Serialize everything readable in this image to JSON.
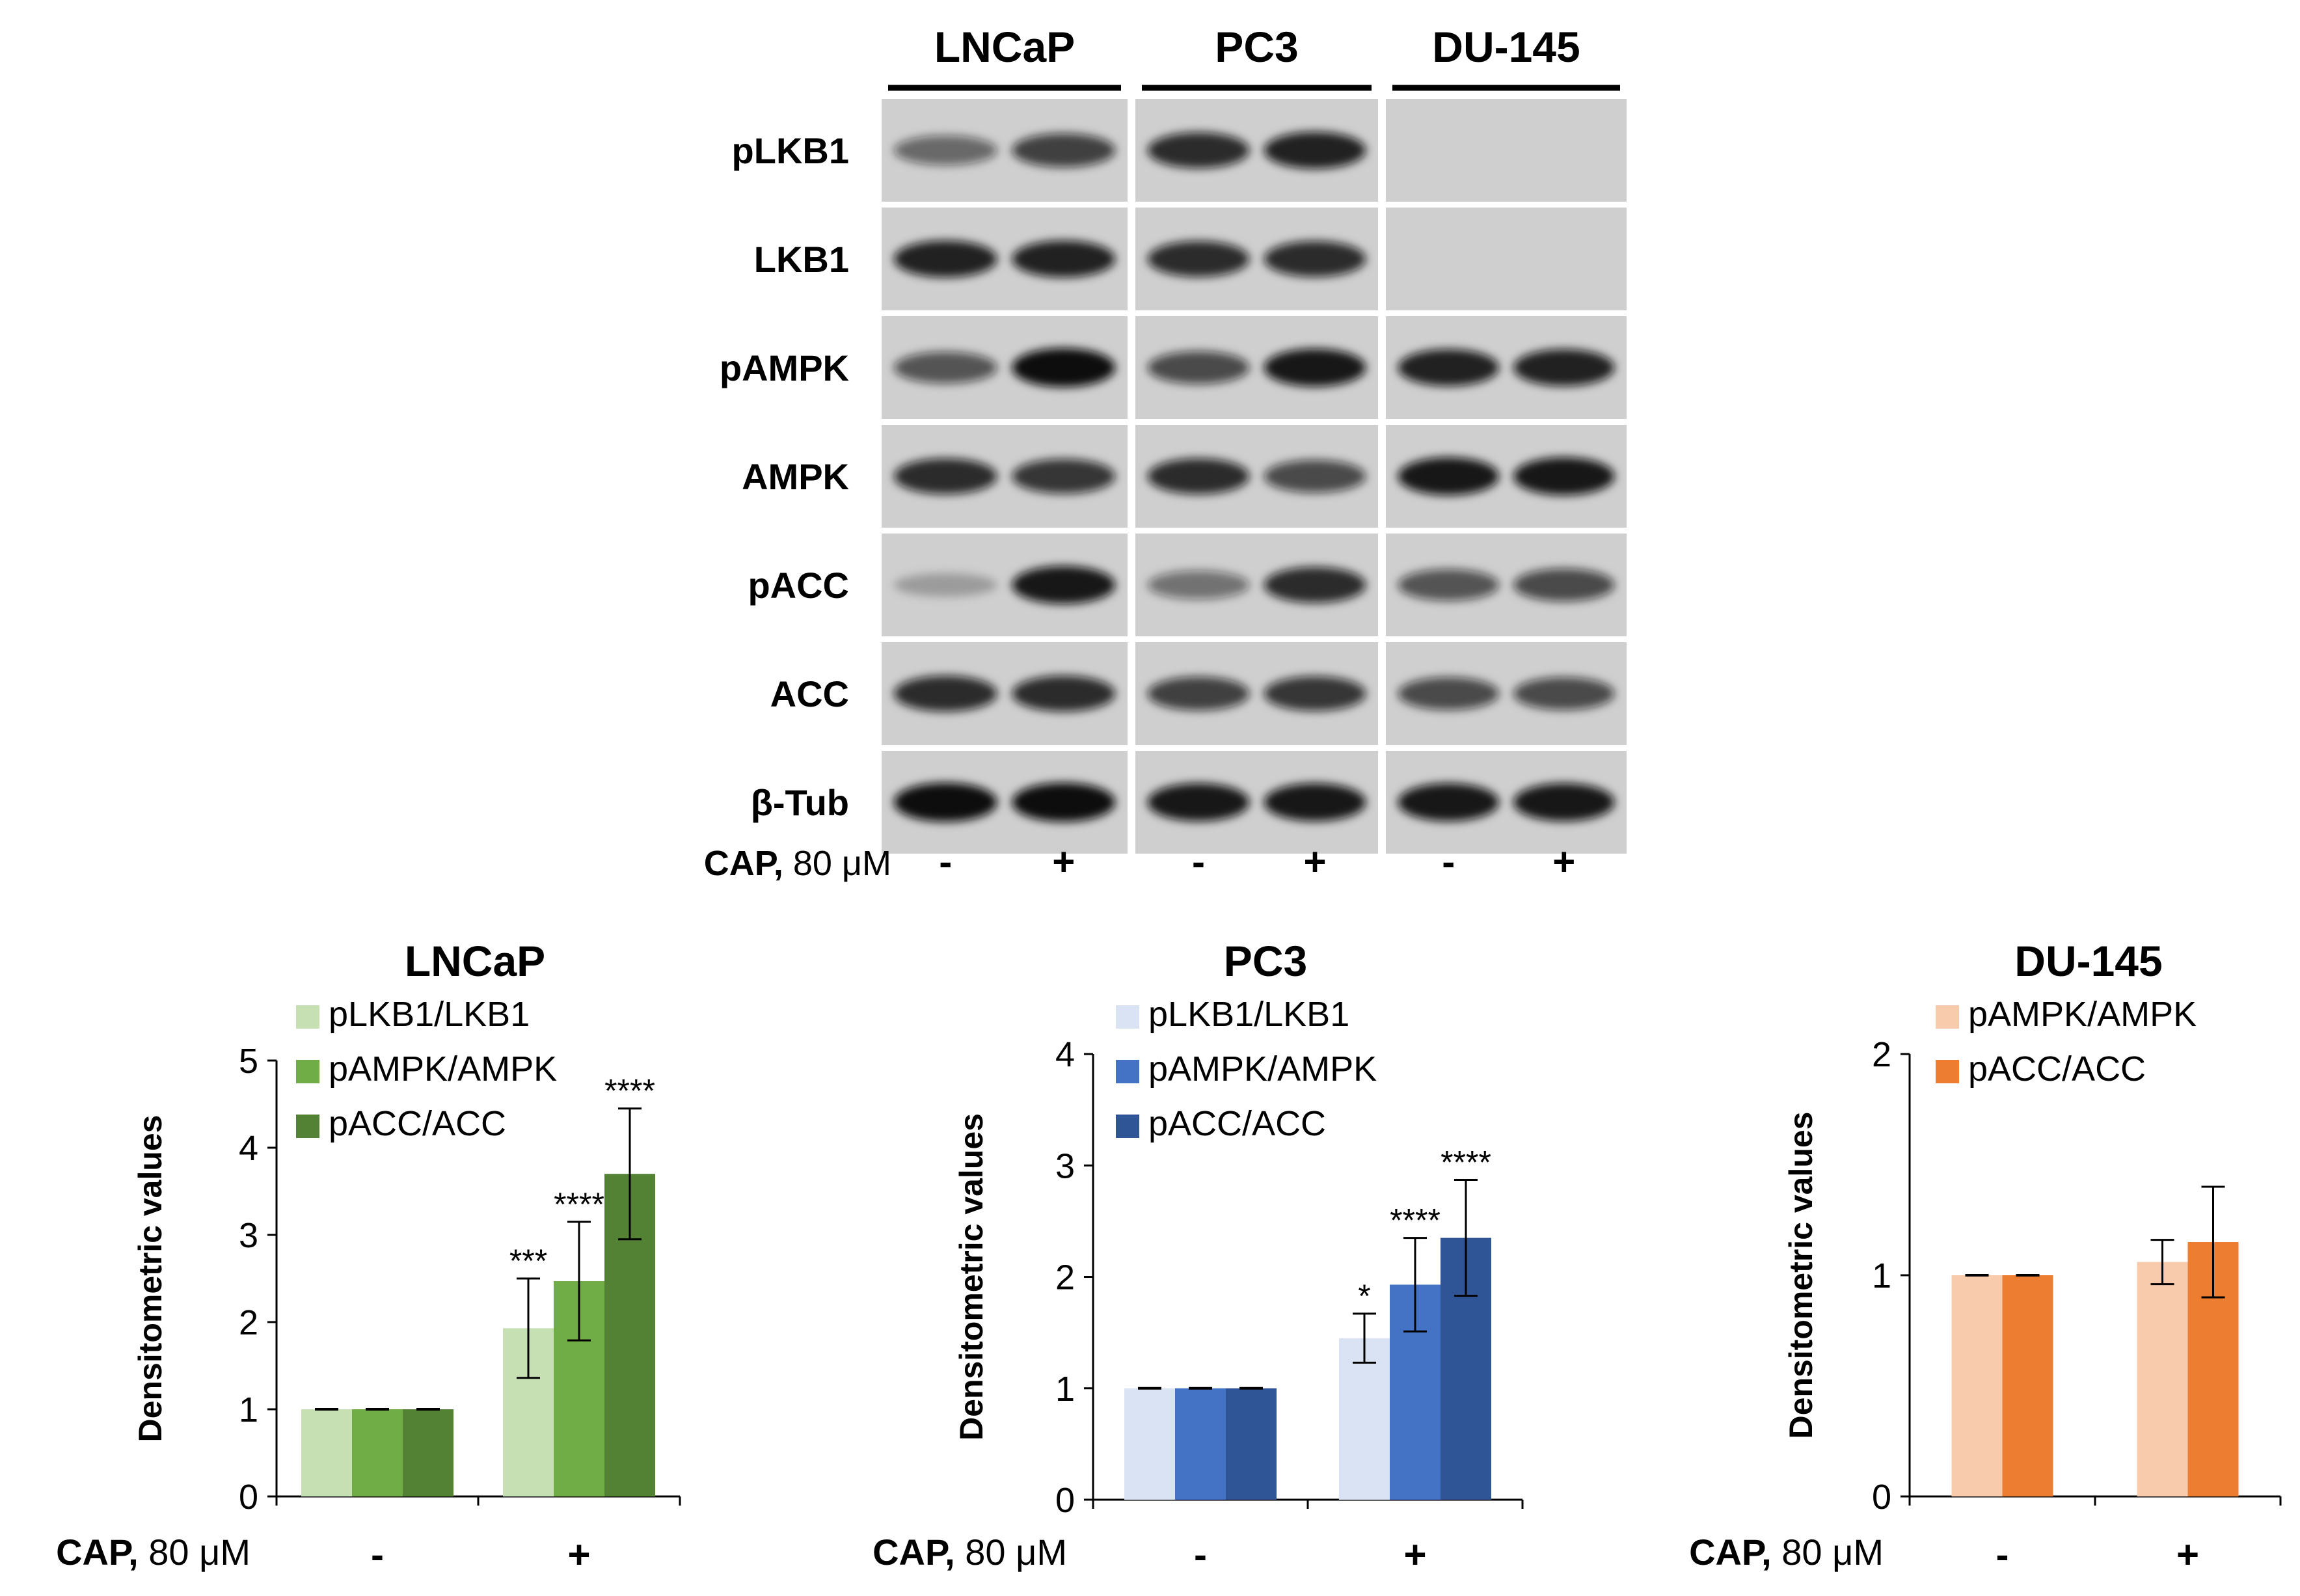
{
  "blot": {
    "cell_lines": [
      "LNCaP",
      "PC3",
      "DU-145"
    ],
    "rows": [
      "pLKB1",
      "LKB1",
      "pAMPK",
      "AMPK",
      "pACC",
      "ACC",
      "β-Tub"
    ],
    "treatment_label_bold": "CAP,",
    "treatment_label_rest": " 80 μM",
    "lane_signs": [
      "-",
      "+",
      "-",
      "+",
      "-",
      "+"
    ],
    "band_intensity": [
      [
        0.55,
        0.75,
        0.85,
        0.9,
        0,
        0
      ],
      [
        0.9,
        0.9,
        0.85,
        0.85,
        0,
        0
      ],
      [
        0.65,
        1.0,
        0.7,
        0.95,
        0.9,
        0.9
      ],
      [
        0.85,
        0.8,
        0.85,
        0.7,
        0.95,
        0.95
      ],
      [
        0.25,
        0.95,
        0.5,
        0.85,
        0.65,
        0.7
      ],
      [
        0.85,
        0.85,
        0.75,
        0.8,
        0.7,
        0.7
      ],
      [
        1.0,
        1.0,
        0.95,
        0.95,
        0.95,
        0.95
      ]
    ]
  },
  "chart_data": [
    {
      "type": "bar",
      "title": "LNCaP",
      "ylabel": "Densitometric values",
      "xlabel_bold": "CAP,",
      "xlabel_rest": " 80 μM",
      "categories": [
        "-",
        "+"
      ],
      "ylim": [
        0,
        5
      ],
      "yticks": [
        "0",
        "1",
        "2",
        "3",
        "4",
        "5"
      ],
      "legend_position": "top-left",
      "series": [
        {
          "name": "pLKB1/LKB1",
          "color": "#c6e0b4",
          "values": [
            1,
            1.93
          ],
          "errors": [
            0,
            0.57
          ],
          "significance": [
            "",
            "***"
          ]
        },
        {
          "name": "pAMPK/AMPK",
          "color": "#70ad47",
          "values": [
            1,
            2.47
          ],
          "errors": [
            0,
            0.68
          ],
          "significance": [
            "",
            "****"
          ]
        },
        {
          "name": "pACC/ACC",
          "color": "#548235",
          "values": [
            1,
            3.7
          ],
          "errors": [
            0,
            0.75
          ],
          "significance": [
            "",
            "****"
          ]
        }
      ]
    },
    {
      "type": "bar",
      "title": "PC3",
      "ylabel": "Densitometric values",
      "xlabel_bold": "CAP,",
      "xlabel_rest": " 80 μM",
      "categories": [
        "-",
        "+"
      ],
      "ylim": [
        0,
        4
      ],
      "yticks": [
        "0",
        "1",
        "2",
        "3",
        "4"
      ],
      "legend_position": "top-left",
      "series": [
        {
          "name": "pLKB1/LKB1",
          "color": "#dae3f3",
          "values": [
            1,
            1.45
          ],
          "errors": [
            0,
            0.22
          ],
          "significance": [
            "",
            "*"
          ]
        },
        {
          "name": "pAMPK/AMPK",
          "color": "#4472c4",
          "values": [
            1,
            1.93
          ],
          "errors": [
            0,
            0.42
          ],
          "significance": [
            "",
            "****"
          ]
        },
        {
          "name": "pACC/ACC",
          "color": "#2f5597",
          "values": [
            1,
            2.35
          ],
          "errors": [
            0,
            0.52
          ],
          "significance": [
            "",
            "****"
          ]
        }
      ]
    },
    {
      "type": "bar",
      "title": "DU-145",
      "ylabel": "Densitometric values",
      "xlabel_bold": "CAP,",
      "xlabel_rest": " 80 μM",
      "categories": [
        "-",
        "+"
      ],
      "ylim": [
        0,
        2
      ],
      "yticks": [
        "0",
        "1",
        "2"
      ],
      "legend_position": "top-left",
      "series": [
        {
          "name": "pAMPK/AMPK",
          "color": "#f8cbad",
          "values": [
            1,
            1.06
          ],
          "errors": [
            0,
            0.1
          ],
          "significance": [
            "",
            ""
          ]
        },
        {
          "name": "pACC/ACC",
          "color": "#ed7d31",
          "values": [
            1,
            1.15
          ],
          "errors": [
            0,
            0.25
          ],
          "significance": [
            "",
            ""
          ]
        }
      ]
    }
  ]
}
